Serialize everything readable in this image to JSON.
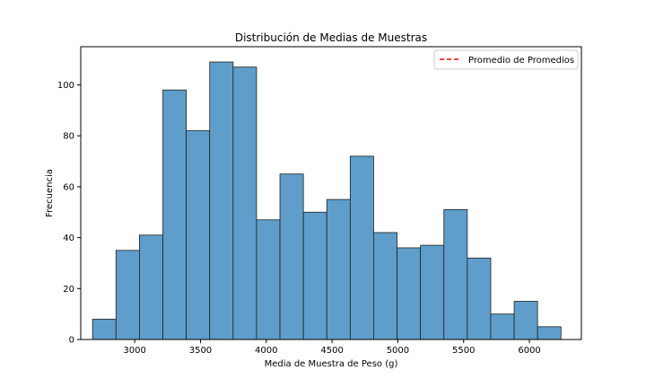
{
  "chart_data": {
    "type": "bar",
    "title": "Distribución de Medias de Muestras",
    "xlabel": "Media de Muestra de Peso (g)",
    "ylabel": "Frecuencia",
    "xlim": [
      2590,
      6395
    ],
    "ylim": [
      0,
      115
    ],
    "xticks": [
      3000,
      3500,
      4000,
      4500,
      5000,
      5500,
      6000
    ],
    "yticks": [
      0,
      20,
      40,
      60,
      80,
      100
    ],
    "grid": false,
    "legend": {
      "placement": "top-right",
      "entries": [
        {
          "label": "Promedio de Promedios",
          "color": "#ff0000",
          "style": "dashed"
        }
      ]
    },
    "bins": {
      "edges": [
        2680,
        2858,
        3036,
        3214,
        3392,
        3570,
        3748,
        3926,
        4104,
        4282,
        4460,
        4638,
        4816,
        4994,
        5172,
        5350,
        5528,
        5706,
        5884,
        6062,
        6240
      ],
      "counts": [
        8,
        35,
        41,
        98,
        82,
        109,
        107,
        47,
        65,
        50,
        55,
        72,
        42,
        36,
        37,
        51,
        32,
        10,
        15,
        5
      ]
    },
    "colors": {
      "bar_fill": "#5f9ecb",
      "bar_edge": "#1f1f1f",
      "mean_line": "#ff0000"
    }
  }
}
